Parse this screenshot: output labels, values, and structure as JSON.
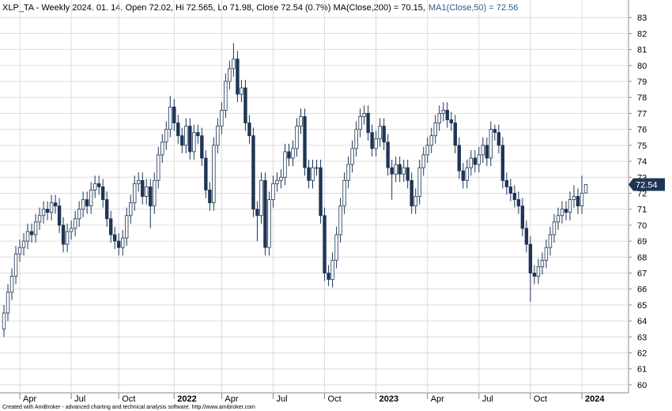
{
  "chart_data": {
    "type": "candlestick",
    "title": "XLP_TA - Weekly 2024. 01. 14. Open 72.02, Hi 72.565, Lo 71.98, Close 72.54 (0.7%) MA(Close,200) = 70.15,",
    "indicator_label": "MA1(Close,50) = 72.56",
    "footer": "Created with AmiBroker - advanced charting and technical analysis software. http://www.amibroker.com",
    "up_color": "#ffffff",
    "down_color": "#1e3556",
    "grid": true,
    "ylim": [
      59.5,
      84.1
    ],
    "yticks": [
      60,
      61,
      62,
      63,
      64,
      65,
      66,
      67,
      68,
      69,
      70,
      71,
      72,
      73,
      74,
      75,
      76,
      77,
      78,
      79,
      80,
      81,
      82,
      83
    ],
    "categories": [
      null,
      null,
      null,
      null,
      "Apr",
      null,
      null,
      null,
      null,
      null,
      null,
      null,
      null,
      null,
      null,
      null,
      null,
      "Jul",
      null,
      null,
      null,
      null,
      null,
      null,
      null,
      null,
      null,
      null,
      null,
      "Oct",
      null,
      null,
      null,
      null,
      null,
      null,
      null,
      null,
      null,
      null,
      null,
      null,
      null,
      "2022",
      null,
      null,
      null,
      null,
      null,
      null,
      null,
      null,
      null,
      null,
      null,
      "Apr",
      null,
      null,
      null,
      null,
      null,
      null,
      null,
      null,
      null,
      null,
      null,
      null,
      "Jul",
      null,
      null,
      null,
      null,
      null,
      null,
      null,
      null,
      null,
      null,
      null,
      null,
      "Oct",
      null,
      null,
      null,
      null,
      null,
      null,
      null,
      null,
      null,
      null,
      null,
      null,
      "2023",
      null,
      null,
      null,
      null,
      null,
      null,
      null,
      null,
      null,
      null,
      null,
      null,
      "Apr",
      null,
      null,
      null,
      null,
      null,
      null,
      null,
      null,
      null,
      null,
      null,
      null,
      "Jul",
      null,
      null,
      null,
      null,
      null,
      null,
      null,
      null,
      null,
      null,
      null,
      null,
      "Oct",
      null,
      null,
      null,
      null,
      null,
      null,
      null,
      null,
      null,
      null,
      null,
      null,
      "2024",
      null
    ],
    "open": [
      63.5,
      64.5,
      65.8,
      66.8,
      68.2,
      68.6,
      69.0,
      69.6,
      69.4,
      70.2,
      70.6,
      71.0,
      70.8,
      71.4,
      71.2,
      70.0,
      68.8,
      69.6,
      69.8,
      70.4,
      71.0,
      71.6,
      71.2,
      72.2,
      72.6,
      72.4,
      71.6,
      70.4,
      69.4,
      69.0,
      68.6,
      69.2,
      70.6,
      71.4,
      72.6,
      72.8,
      71.8,
      72.4,
      71.2,
      72.8,
      74.4,
      75.2,
      76.0,
      77.4,
      76.4,
      75.6,
      75.0,
      76.2,
      74.6,
      75.8,
      75.6,
      74.2,
      72.2,
      71.4,
      75.0,
      76.2,
      77.2,
      79.0,
      79.8,
      80.4,
      78.2,
      78.6,
      76.4,
      75.6,
      71.0,
      70.6,
      72.8,
      68.6,
      71.6,
      72.6,
      72.8,
      73.0,
      74.6,
      74.2,
      74.8,
      76.2,
      76.8,
      73.6,
      72.8,
      73.6,
      73.6,
      70.6,
      67.0,
      66.6,
      67.8,
      69.4,
      71.2,
      72.8,
      73.8,
      74.8,
      76.0,
      76.8,
      77.0,
      75.8,
      74.8,
      75.4,
      76.2,
      75.2,
      73.6,
      73.2,
      73.8,
      73.2,
      73.6,
      72.8,
      71.2,
      71.8,
      73.6,
      74.4,
      75.0,
      75.6,
      76.4,
      77.0,
      77.2,
      76.6,
      76.4,
      75.0,
      73.4,
      72.8,
      73.6,
      74.2,
      73.8,
      74.4,
      75.0,
      74.2,
      76.0,
      75.8,
      75.0,
      72.8,
      72.4,
      72.0,
      71.6,
      71.2,
      69.8,
      68.8,
      67.0,
      66.8,
      67.4,
      67.8,
      68.6,
      69.4,
      70.2,
      70.6,
      71.0,
      70.8,
      71.6,
      71.8,
      71.2,
      72.02
    ],
    "high": [
      65.0,
      66.3,
      67.3,
      68.7,
      69.1,
      69.5,
      70.1,
      70.1,
      70.7,
      71.1,
      71.5,
      71.5,
      71.9,
      71.9,
      71.7,
      70.5,
      70.1,
      70.3,
      70.9,
      71.5,
      72.1,
      72.1,
      72.7,
      73.1,
      73.1,
      72.9,
      72.1,
      70.9,
      69.9,
      69.5,
      69.7,
      71.1,
      71.9,
      73.1,
      73.3,
      73.3,
      72.9,
      72.9,
      73.3,
      74.9,
      75.7,
      76.5,
      78.1,
      77.9,
      76.9,
      76.1,
      76.7,
      76.7,
      76.3,
      76.3,
      76.1,
      74.7,
      72.7,
      75.5,
      76.7,
      77.7,
      79.5,
      80.3,
      81.4,
      80.9,
      79.1,
      79.1,
      76.9,
      76.1,
      71.5,
      73.3,
      73.3,
      72.1,
      73.1,
      73.3,
      73.5,
      75.1,
      75.1,
      75.3,
      76.7,
      77.3,
      77.3,
      74.1,
      74.1,
      74.1,
      74.1,
      71.1,
      67.5,
      68.3,
      69.9,
      71.7,
      73.3,
      74.3,
      75.3,
      76.5,
      77.3,
      77.5,
      77.5,
      76.3,
      75.9,
      76.7,
      76.7,
      75.7,
      74.1,
      74.3,
      74.3,
      74.1,
      74.1,
      73.3,
      72.3,
      74.1,
      74.9,
      75.5,
      76.1,
      76.9,
      77.5,
      77.7,
      77.7,
      77.1,
      76.9,
      75.5,
      73.9,
      74.1,
      74.7,
      74.7,
      74.9,
      75.5,
      75.5,
      76.5,
      76.3,
      76.3,
      75.5,
      73.3,
      72.9,
      72.5,
      72.1,
      71.7,
      70.3,
      69.3,
      67.5,
      67.9,
      68.3,
      69.1,
      69.9,
      70.7,
      71.1,
      71.5,
      71.5,
      72.1,
      72.5,
      72.3,
      73.1,
      72.565
    ],
    "low": [
      63.0,
      64.0,
      65.3,
      66.3,
      67.7,
      68.1,
      68.5,
      68.9,
      68.9,
      69.7,
      70.1,
      70.3,
      70.3,
      70.7,
      69.5,
      68.3,
      68.3,
      69.1,
      69.3,
      69.9,
      70.5,
      70.7,
      70.7,
      71.7,
      71.9,
      71.1,
      69.9,
      68.9,
      68.5,
      68.1,
      68.1,
      68.7,
      70.1,
      70.9,
      72.1,
      71.3,
      71.3,
      69.8,
      70.7,
      72.3,
      73.9,
      74.7,
      75.5,
      75.9,
      75.1,
      74.5,
      74.5,
      74.1,
      74.1,
      75.1,
      73.7,
      71.7,
      70.9,
      70.9,
      74.5,
      75.7,
      76.7,
      78.5,
      79.3,
      77.7,
      77.7,
      75.9,
      75.1,
      70.5,
      69.0,
      70.1,
      68.1,
      68.1,
      71.1,
      72.1,
      72.3,
      72.5,
      73.7,
      73.7,
      74.3,
      75.7,
      73.1,
      72.3,
      72.3,
      73.1,
      70.1,
      66.5,
      66.2,
      66.1,
      67.3,
      68.9,
      70.7,
      72.3,
      73.3,
      74.3,
      75.5,
      76.3,
      75.3,
      74.3,
      74.3,
      74.9,
      74.7,
      73.1,
      71.6,
      72.7,
      72.7,
      72.7,
      72.3,
      70.7,
      70.7,
      71.3,
      73.1,
      73.9,
      74.5,
      75.1,
      75.9,
      76.5,
      76.1,
      75.9,
      74.5,
      72.9,
      72.3,
      72.3,
      73.1,
      73.3,
      73.3,
      73.9,
      73.7,
      73.7,
      75.3,
      74.5,
      72.3,
      71.9,
      71.5,
      71.1,
      70.7,
      69.3,
      68.3,
      65.2,
      66.3,
      66.3,
      66.9,
      67.3,
      68.1,
      68.9,
      69.7,
      70.1,
      70.3,
      70.3,
      71.1,
      70.7,
      70.7,
      71.98
    ],
    "close": [
      64.5,
      65.8,
      66.8,
      68.2,
      68.6,
      69.0,
      69.6,
      69.4,
      70.2,
      70.6,
      71.0,
      70.8,
      71.4,
      71.2,
      70.0,
      68.8,
      69.6,
      69.8,
      70.4,
      71.0,
      71.6,
      71.2,
      72.2,
      72.6,
      72.4,
      71.6,
      70.4,
      69.4,
      69.0,
      68.6,
      69.2,
      70.6,
      71.4,
      72.6,
      72.8,
      71.8,
      72.4,
      71.2,
      72.8,
      74.4,
      75.2,
      76.0,
      77.4,
      76.4,
      75.6,
      75.0,
      76.2,
      74.6,
      75.8,
      75.6,
      74.2,
      72.2,
      71.4,
      75.0,
      76.2,
      77.2,
      79.0,
      79.8,
      80.4,
      78.2,
      78.6,
      76.4,
      75.6,
      71.0,
      70.6,
      72.8,
      68.6,
      71.6,
      72.6,
      72.8,
      73.0,
      74.6,
      74.2,
      74.8,
      76.2,
      76.8,
      73.6,
      72.8,
      73.6,
      73.6,
      70.6,
      67.0,
      66.6,
      67.8,
      69.4,
      71.2,
      72.8,
      73.8,
      74.8,
      76.0,
      76.8,
      77.0,
      75.8,
      74.8,
      75.4,
      76.2,
      75.2,
      73.6,
      73.2,
      73.8,
      73.2,
      73.6,
      72.8,
      71.2,
      71.8,
      73.6,
      74.4,
      75.0,
      75.6,
      76.4,
      77.0,
      77.2,
      76.6,
      76.4,
      75.0,
      73.4,
      72.8,
      73.6,
      74.2,
      73.8,
      74.4,
      75.0,
      74.2,
      76.0,
      75.8,
      75.0,
      72.8,
      72.4,
      72.0,
      71.6,
      71.2,
      69.8,
      68.8,
      67.0,
      66.8,
      67.4,
      67.8,
      68.6,
      69.4,
      70.2,
      70.6,
      71.0,
      70.8,
      71.6,
      71.8,
      71.2,
      72.0,
      72.54
    ]
  }
}
